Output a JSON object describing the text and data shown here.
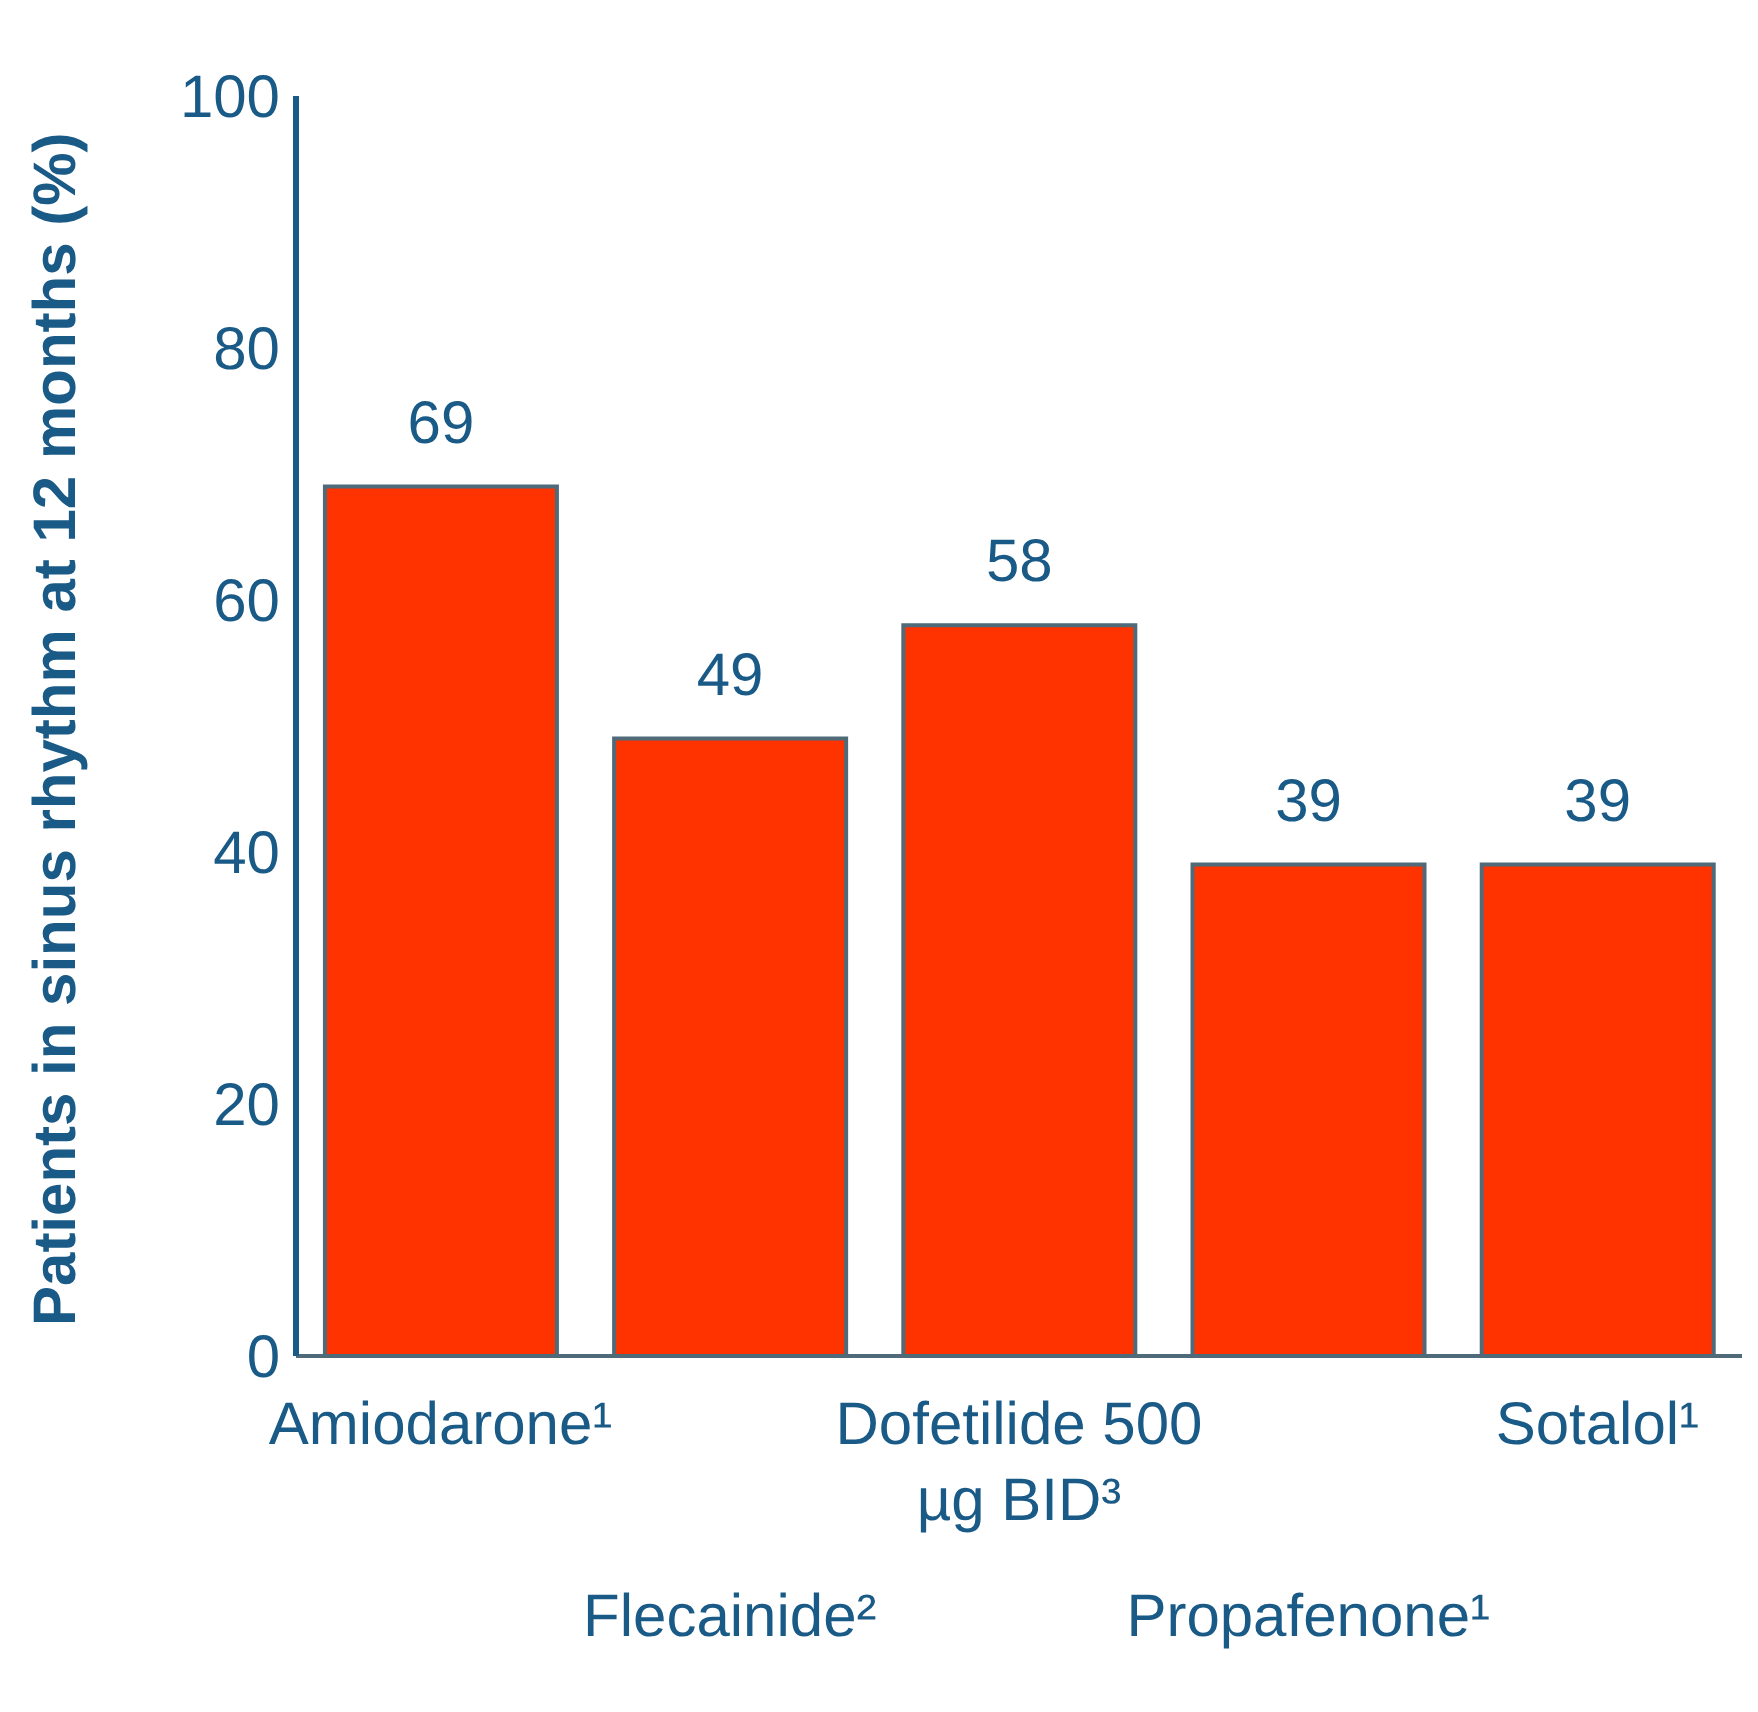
{
  "chart_data": {
    "type": "bar",
    "ylabel": "Patients in sinus rhythm at 12 months (%)",
    "categories": [
      "Amiodarone¹",
      "Flecainide²",
      "Dofetilide 500 µg BID³",
      "Propafenone¹",
      "Sotalol¹"
    ],
    "values": [
      69,
      49,
      58,
      39,
      39
    ],
    "color": "#ff3300",
    "ylim": [
      0,
      100
    ],
    "yticks": [
      0,
      20,
      40,
      60,
      80,
      100
    ],
    "grid": false,
    "legend": false,
    "data_labels": true
  }
}
